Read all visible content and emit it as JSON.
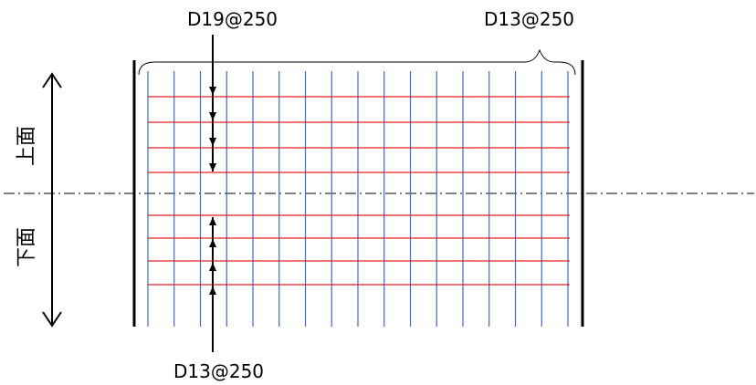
{
  "labels": {
    "top_vertical_rebar": "D19@250",
    "top_horizontal_rebar": "D13@250",
    "bottom_rebar": "D13@250",
    "upper_face": "上面",
    "lower_face": "下面"
  },
  "colors": {
    "horizontal_bars": "#e02020",
    "vertical_bars": "#3a66d6",
    "outline": "#000000"
  }
}
